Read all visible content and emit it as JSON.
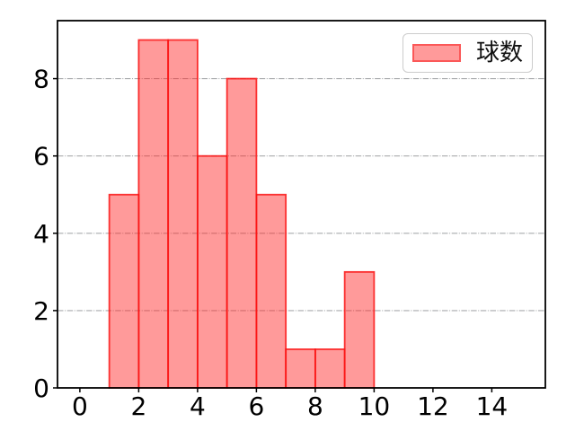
{
  "chart_data": {
    "type": "bar",
    "subtype": "histogram",
    "title": "",
    "xlabel": "",
    "ylabel": "",
    "legend": {
      "label": "球数",
      "position": "upper right"
    },
    "bin_edges": [
      1,
      2,
      3,
      4,
      5,
      6,
      7,
      8,
      9,
      10
    ],
    "counts": [
      5,
      9,
      9,
      6,
      8,
      5,
      1,
      1,
      3
    ],
    "x_ticks": [
      0,
      2,
      4,
      6,
      8,
      10,
      12,
      14
    ],
    "y_ticks": [
      0,
      2,
      4,
      6,
      8
    ],
    "xlim": [
      -0.76,
      15.82
    ],
    "ylim": [
      0,
      9.5
    ],
    "grid": {
      "axis": "y",
      "linestyle": "dashdot",
      "color": "#a9abad"
    },
    "colors": {
      "bar_fill": "rgba(255,30,30,0.45)",
      "bar_edge": "rgba(250,20,20,0.85)",
      "legend_swatch_fill": "#ff9a9a",
      "legend_swatch_edge": "#fb5858",
      "legend_border": "#cccccc",
      "spine": "#000000",
      "tick": "#000000",
      "tick_label": "#000000",
      "background": "#ffffff"
    }
  }
}
